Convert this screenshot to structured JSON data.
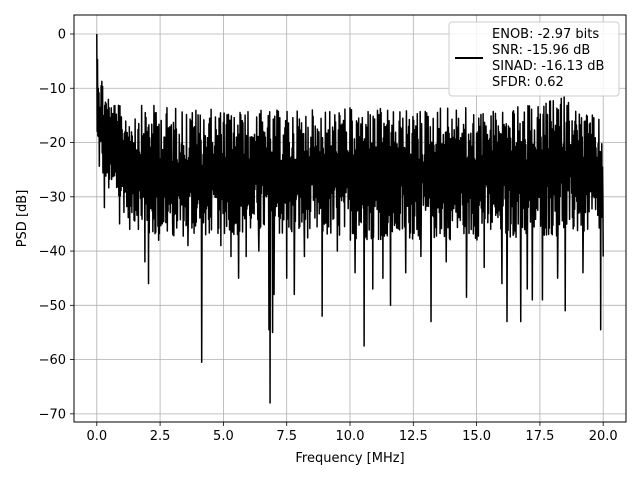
{
  "chart_data": {
    "type": "line",
    "xlabel": "Frequency [MHz]",
    "ylabel": "PSD [dB]",
    "xlim": [
      -0.9,
      20.9
    ],
    "ylim": [
      -71.5,
      3.5
    ],
    "xticks": [
      0.0,
      2.5,
      5.0,
      7.5,
      10.0,
      12.5,
      15.0,
      17.5,
      20.0
    ],
    "xtick_labels": [
      "0.0",
      "2.5",
      "5.0",
      "7.5",
      "10.0",
      "12.5",
      "15.0",
      "17.5",
      "20.0"
    ],
    "yticks": [
      0,
      -10,
      -20,
      -30,
      -40,
      -50,
      -60,
      -70
    ],
    "ytick_labels": [
      "0",
      "−10",
      "−20",
      "−30",
      "−40",
      "−50",
      "−60",
      "−70"
    ],
    "grid": true,
    "legend_position": "top-right",
    "legend": [
      "ENOB: -2.97 bits",
      "SNR: -15.96 dB",
      "SINAD: -16.13 dB",
      "SFDR: 0.62"
    ],
    "series": [
      {
        "color": "#000000",
        "band_upper": [
          [
            0.0,
            0.0
          ],
          [
            0.1,
            -5
          ],
          [
            0.3,
            -9
          ],
          [
            0.6,
            -12
          ],
          [
            1.0,
            -13.5
          ],
          [
            2.0,
            -13
          ],
          [
            5.0,
            -14
          ],
          [
            8.0,
            -14
          ],
          [
            10.0,
            -13.5
          ],
          [
            12.5,
            -14
          ],
          [
            14.0,
            -13
          ],
          [
            15.0,
            -14
          ],
          [
            17.5,
            -13
          ],
          [
            18.5,
            -11
          ],
          [
            19.0,
            -13.5
          ],
          [
            20.0,
            -16
          ]
        ],
        "band_lower": [
          [
            0.0,
            -25
          ],
          [
            0.5,
            -30
          ],
          [
            2.0,
            -38
          ],
          [
            5.0,
            -37
          ],
          [
            10.0,
            -38
          ],
          [
            15.0,
            -38
          ],
          [
            20.0,
            -37
          ]
        ],
        "spikes": [
          [
            0.05,
            -10
          ],
          [
            0.3,
            -32
          ],
          [
            0.9,
            -35
          ],
          [
            1.3,
            -36
          ],
          [
            1.9,
            -42
          ],
          [
            2.05,
            -46
          ],
          [
            2.45,
            -38
          ],
          [
            3.0,
            -37
          ],
          [
            3.6,
            -39
          ],
          [
            4.15,
            -60.5
          ],
          [
            4.3,
            -37
          ],
          [
            4.9,
            -39
          ],
          [
            5.3,
            -41
          ],
          [
            5.6,
            -45
          ],
          [
            5.9,
            -41
          ],
          [
            6.4,
            -40
          ],
          [
            6.8,
            -54.5
          ],
          [
            6.95,
            -55
          ],
          [
            6.85,
            -68
          ],
          [
            7.0,
            -48
          ],
          [
            7.5,
            -45
          ],
          [
            7.8,
            -48
          ],
          [
            8.2,
            -41
          ],
          [
            8.9,
            -52
          ],
          [
            9.5,
            -40
          ],
          [
            10.2,
            -44
          ],
          [
            10.55,
            -57.5
          ],
          [
            10.9,
            -47
          ],
          [
            11.3,
            -45
          ],
          [
            11.6,
            -50
          ],
          [
            12.2,
            -44
          ],
          [
            12.8,
            -41
          ],
          [
            13.2,
            -53
          ],
          [
            13.8,
            -42
          ],
          [
            14.6,
            -48.5
          ],
          [
            15.3,
            -43
          ],
          [
            16.0,
            -46
          ],
          [
            16.2,
            -53
          ],
          [
            16.75,
            -53
          ],
          [
            17.0,
            -47
          ],
          [
            17.2,
            -49
          ],
          [
            17.6,
            -49
          ],
          [
            18.2,
            -45
          ],
          [
            18.5,
            -51
          ],
          [
            19.2,
            -44
          ],
          [
            19.9,
            -54.5
          ],
          [
            20.0,
            -41
          ]
        ]
      }
    ]
  }
}
